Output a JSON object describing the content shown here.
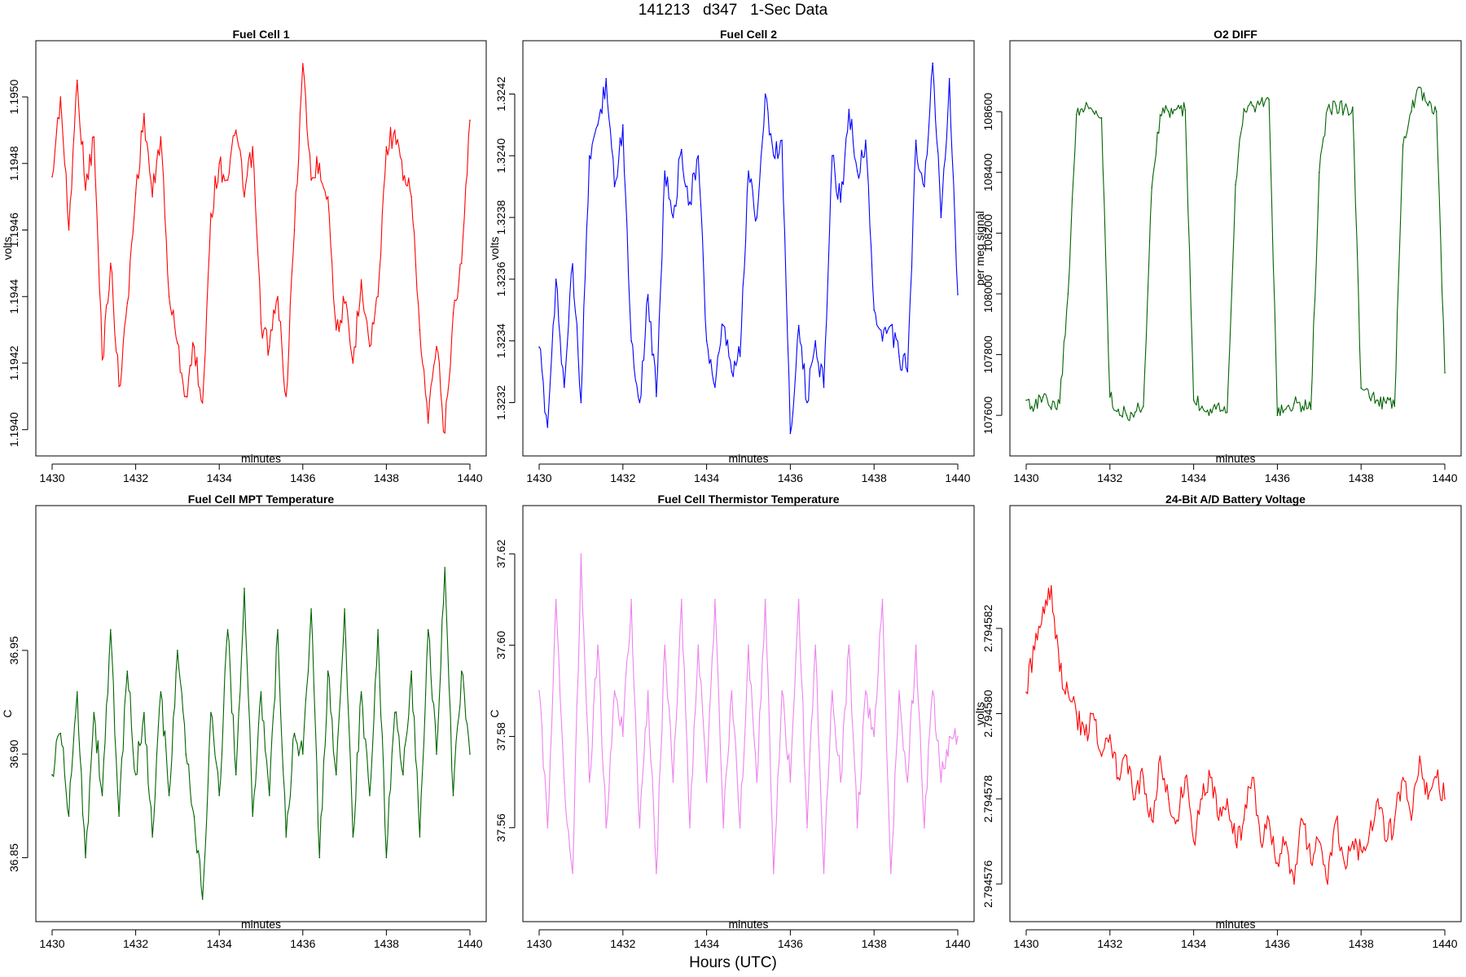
{
  "title": "141213   d347   1-Sec Data",
  "footer_xlabel": "Hours (UTC)",
  "chart_data": [
    {
      "type": "line",
      "title": "Fuel Cell 1",
      "xlabel": "minutes",
      "ylabel": "volts",
      "color": "#ff0000",
      "xlim": [
        1430,
        1440
      ],
      "ylim": [
        1.19397,
        1.19512
      ],
      "xticks": [
        "1430",
        "1432",
        "1434",
        "1436",
        "1438",
        "1440"
      ],
      "yticks": [
        "1.1940",
        "1.1942",
        "1.1944",
        "1.1946",
        "1.1948",
        "1.1950"
      ],
      "x": [
        1430.0,
        1430.2,
        1430.4,
        1430.6,
        1430.8,
        1431.0,
        1431.2,
        1431.4,
        1431.6,
        1431.8,
        1432.0,
        1432.2,
        1432.4,
        1432.6,
        1432.8,
        1433.0,
        1433.2,
        1433.4,
        1433.6,
        1433.8,
        1434.0,
        1434.2,
        1434.4,
        1434.6,
        1434.8,
        1435.0,
        1435.2,
        1435.4,
        1435.6,
        1435.8,
        1436.0,
        1436.2,
        1436.4,
        1436.6,
        1436.8,
        1437.0,
        1437.2,
        1437.4,
        1437.6,
        1437.8,
        1438.0,
        1438.2,
        1438.4,
        1438.6,
        1438.8,
        1439.0,
        1439.2,
        1439.4,
        1439.6,
        1439.8,
        1440.0
      ],
      "values": [
        1.19476,
        1.195,
        1.1946,
        1.19505,
        1.19472,
        1.19488,
        1.19421,
        1.1945,
        1.19413,
        1.19438,
        1.19471,
        1.19495,
        1.1947,
        1.19488,
        1.1944,
        1.19426,
        1.1941,
        1.19425,
        1.19408,
        1.19465,
        1.1948,
        1.19475,
        1.1949,
        1.1947,
        1.19485,
        1.19432,
        1.19425,
        1.1944,
        1.1941,
        1.1946,
        1.1951,
        1.19475,
        1.1948,
        1.1947,
        1.1943,
        1.19438,
        1.1942,
        1.19445,
        1.19425,
        1.1944,
        1.19485,
        1.1949,
        1.19475,
        1.1947,
        1.1943,
        1.19402,
        1.19425,
        1.19399,
        1.19435,
        1.1945,
        1.19493
      ]
    },
    {
      "type": "line",
      "title": "Fuel Cell 2",
      "xlabel": "minutes",
      "ylabel": "volts",
      "color": "#0000ff",
      "xlim": [
        1430,
        1440
      ],
      "ylim": [
        1.32308,
        1.32432
      ],
      "xticks": [
        "1430",
        "1432",
        "1434",
        "1436",
        "1438",
        "1440"
      ],
      "yticks": [
        "1.3232",
        "1.3234",
        "1.3236",
        "1.3238",
        "1.3240",
        "1.3242"
      ],
      "x": [
        1430.0,
        1430.2,
        1430.4,
        1430.6,
        1430.8,
        1431.0,
        1431.2,
        1431.4,
        1431.6,
        1431.8,
        1432.0,
        1432.2,
        1432.4,
        1432.6,
        1432.8,
        1433.0,
        1433.2,
        1433.4,
        1433.6,
        1433.8,
        1434.0,
        1434.2,
        1434.4,
        1434.6,
        1434.8,
        1435.0,
        1435.2,
        1435.4,
        1435.6,
        1435.8,
        1436.0,
        1436.2,
        1436.4,
        1436.6,
        1436.8,
        1437.0,
        1437.2,
        1437.4,
        1437.6,
        1437.8,
        1438.0,
        1438.2,
        1438.4,
        1438.6,
        1438.8,
        1439.0,
        1439.2,
        1439.4,
        1439.6,
        1439.8,
        1440.0
      ],
      "values": [
        1.32338,
        1.32312,
        1.3236,
        1.32325,
        1.32365,
        1.3232,
        1.324,
        1.3241,
        1.32425,
        1.3239,
        1.3241,
        1.3234,
        1.3232,
        1.32355,
        1.32322,
        1.32395,
        1.3238,
        1.32402,
        1.32385,
        1.324,
        1.3234,
        1.32325,
        1.32345,
        1.3233,
        1.32335,
        1.32395,
        1.3238,
        1.3242,
        1.324,
        1.32405,
        1.3231,
        1.32345,
        1.3232,
        1.3234,
        1.32325,
        1.324,
        1.32385,
        1.32415,
        1.32395,
        1.32405,
        1.3235,
        1.3234,
        1.32345,
        1.32335,
        1.3233,
        1.32405,
        1.3239,
        1.3243,
        1.3238,
        1.32425,
        1.32355
      ]
    },
    {
      "type": "line",
      "title": "O2 DIFF",
      "xlabel": "minutes",
      "ylabel": "per meg signal",
      "color": "#006400",
      "xlim": [
        1430,
        1440
      ],
      "ylim": [
        107520,
        108780
      ],
      "xticks": [
        "1430",
        "1432",
        "1434",
        "1436",
        "1438",
        "1440"
      ],
      "yticks": [
        "107600",
        "107800",
        "108000",
        "108200",
        "108400",
        "108600"
      ],
      "x": [
        1430.0,
        1430.2,
        1430.4,
        1430.6,
        1430.8,
        1431.0,
        1431.2,
        1431.4,
        1431.6,
        1431.8,
        1432.0,
        1432.2,
        1432.4,
        1432.6,
        1432.8,
        1433.0,
        1433.2,
        1433.4,
        1433.6,
        1433.8,
        1434.0,
        1434.2,
        1434.4,
        1434.6,
        1434.8,
        1435.0,
        1435.2,
        1435.4,
        1435.6,
        1435.8,
        1436.0,
        1436.2,
        1436.4,
        1436.6,
        1436.8,
        1437.0,
        1437.2,
        1437.4,
        1437.6,
        1437.8,
        1438.0,
        1438.2,
        1438.4,
        1438.6,
        1438.8,
        1439.0,
        1439.2,
        1439.4,
        1439.6,
        1439.8,
        1440.0
      ],
      "values": [
        107650,
        107630,
        107660,
        107620,
        107640,
        108000,
        108590,
        108610,
        108600,
        108580,
        107660,
        107620,
        107600,
        107610,
        107630,
        108350,
        108590,
        108600,
        108610,
        108605,
        107650,
        107630,
        107620,
        107640,
        107610,
        108360,
        108610,
        108620,
        108630,
        108640,
        107600,
        107620,
        107640,
        107630,
        107620,
        108400,
        108610,
        108620,
        108610,
        108615,
        107690,
        107660,
        107650,
        107640,
        107630,
        108490,
        108600,
        108680,
        108620,
        108600,
        107740
      ]
    },
    {
      "type": "line",
      "title": "Fuel Cell MPT Temperature",
      "xlabel": "minutes",
      "ylabel": "C",
      "color": "#006400",
      "xlim": [
        1430,
        1440
      ],
      "ylim": [
        36.827,
        37.012
      ],
      "xticks": [
        "1430",
        "1432",
        "1434",
        "1436",
        "1438",
        "1440"
      ],
      "yticks": [
        "36.85",
        "36.90",
        "36.95"
      ],
      "x": [
        1430.0,
        1430.2,
        1430.4,
        1430.6,
        1430.8,
        1431.0,
        1431.2,
        1431.4,
        1431.6,
        1431.8,
        1432.0,
        1432.2,
        1432.4,
        1432.6,
        1432.8,
        1433.0,
        1433.2,
        1433.4,
        1433.6,
        1433.8,
        1434.0,
        1434.2,
        1434.4,
        1434.6,
        1434.8,
        1435.0,
        1435.2,
        1435.4,
        1435.6,
        1435.8,
        1436.0,
        1436.2,
        1436.4,
        1436.6,
        1436.8,
        1437.0,
        1437.2,
        1437.4,
        1437.6,
        1437.8,
        1438.0,
        1438.2,
        1438.4,
        1438.6,
        1438.8,
        1439.0,
        1439.2,
        1439.4,
        1439.6,
        1439.8,
        1440.0
      ],
      "values": [
        36.89,
        36.91,
        36.87,
        36.93,
        36.85,
        36.92,
        36.88,
        36.96,
        36.87,
        36.94,
        36.89,
        36.92,
        36.86,
        36.93,
        36.88,
        36.95,
        36.9,
        36.87,
        36.83,
        36.92,
        36.88,
        36.96,
        36.89,
        36.98,
        36.87,
        36.93,
        36.88,
        36.96,
        36.86,
        36.91,
        36.9,
        36.97,
        36.85,
        36.94,
        36.89,
        36.97,
        36.86,
        36.93,
        36.88,
        36.96,
        36.85,
        36.92,
        36.89,
        36.94,
        36.86,
        36.96,
        36.9,
        36.99,
        36.88,
        36.94,
        36.9
      ]
    },
    {
      "type": "line",
      "title": "Fuel Cell Thermistor Temperature",
      "xlabel": "minutes",
      "ylabel": "C",
      "color": "#ee82ee",
      "xlim": [
        1430,
        1440
      ],
      "ylim": [
        37.543,
        37.627
      ],
      "xticks": [
        "1430",
        "1432",
        "1434",
        "1436",
        "1438",
        "1440"
      ],
      "yticks": [
        "37.56",
        "37.58",
        "37.60",
        "37.62"
      ],
      "x": [
        1430.0,
        1430.2,
        1430.4,
        1430.6,
        1430.8,
        1431.0,
        1431.2,
        1431.4,
        1431.6,
        1431.8,
        1432.0,
        1432.2,
        1432.4,
        1432.6,
        1432.8,
        1433.0,
        1433.2,
        1433.4,
        1433.6,
        1433.8,
        1434.0,
        1434.2,
        1434.4,
        1434.6,
        1434.8,
        1435.0,
        1435.2,
        1435.4,
        1435.6,
        1435.8,
        1436.0,
        1436.2,
        1436.4,
        1436.6,
        1436.8,
        1437.0,
        1437.2,
        1437.4,
        1437.6,
        1437.8,
        1438.0,
        1438.2,
        1438.4,
        1438.6,
        1438.8,
        1439.0,
        1439.2,
        1439.4,
        1439.6,
        1439.8,
        1440.0
      ],
      "values": [
        37.59,
        37.56,
        37.61,
        37.57,
        37.55,
        37.62,
        37.57,
        37.6,
        37.56,
        37.59,
        37.58,
        37.61,
        37.56,
        37.59,
        37.55,
        37.6,
        37.57,
        37.61,
        37.56,
        37.6,
        37.57,
        37.61,
        37.56,
        37.59,
        37.56,
        37.6,
        37.57,
        37.61,
        37.55,
        37.59,
        37.57,
        37.61,
        37.56,
        37.6,
        37.55,
        37.59,
        37.57,
        37.6,
        37.56,
        37.59,
        37.58,
        37.61,
        37.55,
        37.59,
        37.57,
        37.6,
        37.56,
        37.59,
        37.57,
        37.58,
        37.58
      ]
    },
    {
      "type": "line",
      "title": "24-Bit A/D Battery Voltage",
      "xlabel": "minutes",
      "ylabel": "volts",
      "color": "#ff0000",
      "xlim": [
        1430,
        1440
      ],
      "ylim": [
        2.7945755,
        2.7945845
      ],
      "xticks": [
        "1430",
        "1432",
        "1434",
        "1436",
        "1438",
        "1440"
      ],
      "yticks": [
        "2.794576",
        "2.794578",
        "2.794580",
        "2.794582"
      ],
      "x": [
        1430.0,
        1430.2,
        1430.4,
        1430.6,
        1430.8,
        1431.0,
        1431.2,
        1431.4,
        1431.6,
        1431.8,
        1432.0,
        1432.2,
        1432.4,
        1432.6,
        1432.8,
        1433.0,
        1433.2,
        1433.4,
        1433.6,
        1433.8,
        1434.0,
        1434.2,
        1434.4,
        1434.6,
        1434.8,
        1435.0,
        1435.2,
        1435.4,
        1435.6,
        1435.8,
        1436.0,
        1436.2,
        1436.4,
        1436.6,
        1436.8,
        1437.0,
        1437.2,
        1437.4,
        1437.6,
        1437.8,
        1438.0,
        1438.2,
        1438.4,
        1438.6,
        1438.8,
        1439.0,
        1439.2,
        1439.4,
        1439.6,
        1439.8,
        1440.0
      ],
      "values": [
        2.7945805,
        2.7945815,
        2.7945825,
        2.794583,
        2.794581,
        2.7945805,
        2.79458,
        2.7945795,
        2.79458,
        2.794579,
        2.7945795,
        2.7945785,
        2.794579,
        2.794578,
        2.7945785,
        2.7945775,
        2.794579,
        2.794578,
        2.7945775,
        2.7945785,
        2.794577,
        2.794578,
        2.7945785,
        2.7945775,
        2.794578,
        2.794577,
        2.7945775,
        2.7945785,
        2.794577,
        2.7945775,
        2.7945765,
        2.794577,
        2.794576,
        2.7945775,
        2.7945765,
        2.794577,
        2.794576,
        2.7945775,
        2.7945765,
        2.794577,
        2.7945768,
        2.7945772,
        2.794578,
        2.794577,
        2.7945775,
        2.7945785,
        2.7945775,
        2.794579,
        2.794578,
        2.7945785,
        2.794578
      ]
    }
  ]
}
